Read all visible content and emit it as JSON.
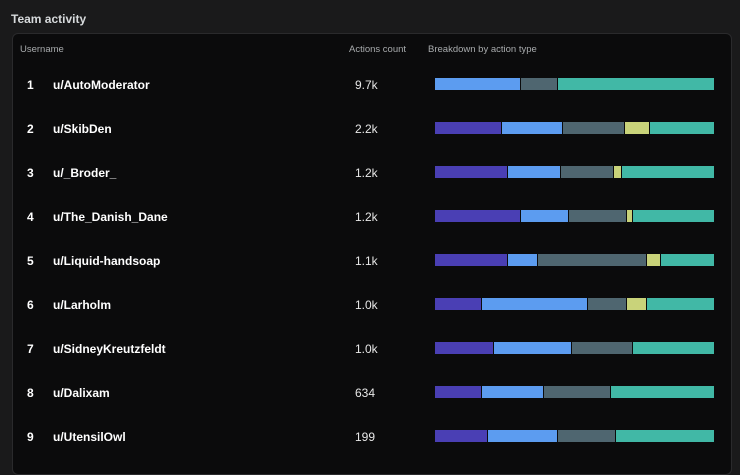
{
  "section": {
    "title": "Team activity"
  },
  "table": {
    "headers": {
      "username": "Username",
      "actions_count": "Actions count",
      "breakdown": "Breakdown by action type"
    },
    "rows": [
      {
        "rank": "1",
        "username": "u/AutoModerator",
        "count": "9.7k",
        "breakdown": [
          0,
          31,
          13,
          0,
          56
        ]
      },
      {
        "rank": "2",
        "username": "u/SkibDen",
        "count": "2.2k",
        "breakdown": [
          24,
          22,
          22,
          9,
          23
        ]
      },
      {
        "rank": "3",
        "username": "u/_Broder_",
        "count": "1.2k",
        "breakdown": [
          26,
          19,
          19,
          3,
          33
        ]
      },
      {
        "rank": "4",
        "username": "u/The_Danish_Dane",
        "count": "1.2k",
        "breakdown": [
          31,
          17,
          21,
          2,
          29
        ]
      },
      {
        "rank": "5",
        "username": "u/Liquid-handsoap",
        "count": "1.1k",
        "breakdown": [
          26,
          11,
          39,
          5,
          19
        ]
      },
      {
        "rank": "6",
        "username": "u/Larholm",
        "count": "1.0k",
        "breakdown": [
          17,
          38,
          14,
          7,
          24
        ]
      },
      {
        "rank": "7",
        "username": "u/SidneyKreutzfeldt",
        "count": "1.0k",
        "breakdown": [
          21,
          28,
          22,
          0,
          29
        ]
      },
      {
        "rank": "8",
        "username": "u/Dalixam",
        "count": "634",
        "breakdown": [
          17,
          22,
          24,
          0,
          37
        ]
      },
      {
        "rank": "9",
        "username": "u/UtensilOwl",
        "count": "199",
        "breakdown": [
          19,
          25,
          21,
          0,
          35
        ]
      }
    ]
  },
  "colors": {
    "action_types": [
      "#4a3fb4",
      "#5c9cf0",
      "#4f6670",
      "#c9d37a",
      "#41b8a6"
    ]
  }
}
